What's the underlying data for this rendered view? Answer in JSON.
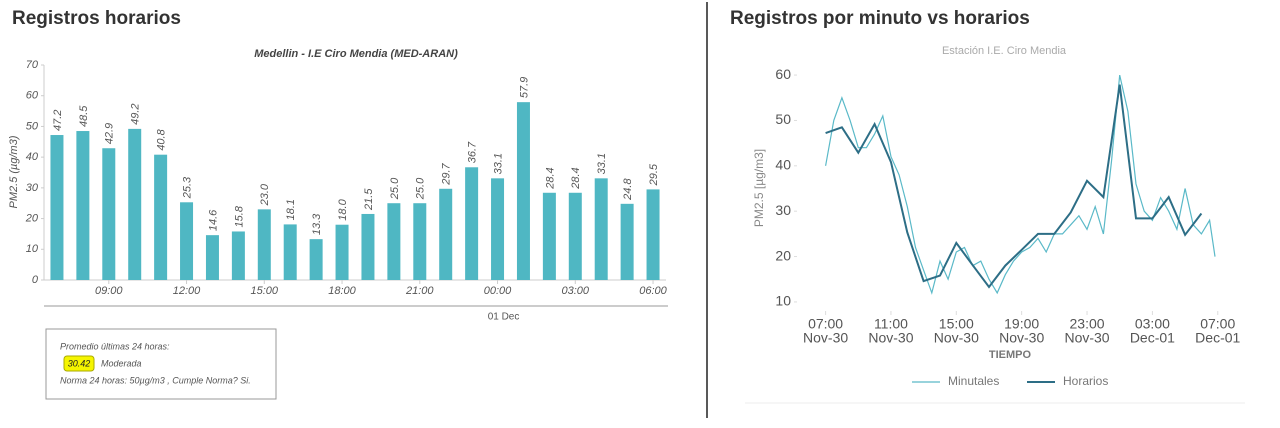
{
  "sections": [
    {
      "heading": "Registros horarios"
    },
    {
      "heading": "Registros por minuto vs horarios"
    }
  ],
  "summary": {
    "label": "Promedio últimas 24 horas:",
    "value": 30.42,
    "category": "Moderada",
    "norm": "Norma 24 horas: 50µg/m3 , Cumple Norma? Si."
  },
  "chart_data": [
    {
      "type": "bar",
      "title": "Medellin - I.E Ciro Mendia (MED-ARAN)",
      "ylabel": "PM2.5 (µg/m3)",
      "categories": [
        null,
        null,
        "09:00",
        null,
        null,
        "12:00",
        null,
        null,
        "15:00",
        null,
        null,
        "18:00",
        null,
        null,
        "21:00",
        null,
        null,
        "00:00",
        null,
        null,
        "03:00",
        null,
        null,
        "06:00"
      ],
      "x_sublabel": "01 Dec",
      "values": [
        47.2,
        48.5,
        42.9,
        49.2,
        40.8,
        25.3,
        14.6,
        15.8,
        23.0,
        18.1,
        13.3,
        18.0,
        21.5,
        25.0,
        25.0,
        29.7,
        36.7,
        33.1,
        57.9,
        28.4,
        28.4,
        33.1,
        24.8,
        29.5
      ],
      "value_labels": [
        "47.2",
        "48.5",
        "42.9",
        "49.2",
        "40.8",
        "25.3",
        "14.6",
        "15.8",
        "23.0",
        "18.1",
        "13.3",
        "18.0",
        "21.5",
        "25.0",
        "25.0",
        "29.7",
        "36.7",
        "33.1",
        "57.9",
        "28.4",
        "28.4",
        "33.1",
        "24.8",
        "29.5"
      ],
      "color": "#4fb7c3",
      "ylim": [
        0,
        70
      ],
      "yticks": [
        0,
        10,
        20,
        30,
        40,
        50,
        60,
        70
      ]
    },
    {
      "type": "line",
      "title": "Estación I.E. Ciro Mendia",
      "ylabel": "PM2.5 [µg/m3]",
      "xlabel": "TIEMPO",
      "xlim": [
        "Nov-30 05:15",
        "Dec-01 07:45"
      ],
      "ylim": [
        8,
        62
      ],
      "yticks": [
        10,
        20,
        30,
        40,
        50,
        60
      ],
      "xticks": [
        {
          "value": "Nov-30 07:00",
          "label": "07:00",
          "sublabel": "Nov-30"
        },
        {
          "value": "Nov-30 11:00",
          "label": "11:00",
          "sublabel": "Nov-30"
        },
        {
          "value": "Nov-30 15:00",
          "label": "15:00",
          "sublabel": "Nov-30"
        },
        {
          "value": "Nov-30 19:00",
          "label": "19:00",
          "sublabel": "Nov-30"
        },
        {
          "value": "Nov-30 23:00",
          "label": "23:00",
          "sublabel": "Nov-30"
        },
        {
          "value": "Dec-01 03:00",
          "label": "03:00",
          "sublabel": "Dec-01"
        },
        {
          "value": "Dec-01 07:00",
          "label": "07:00",
          "sublabel": "Dec-01"
        }
      ],
      "legend": "bottom",
      "series": [
        {
          "name": "Minutales",
          "color": "#5ab9c8",
          "x": [
            "Nov-30 07:00",
            "Nov-30 07:30",
            "Nov-30 08:00",
            "Nov-30 08:30",
            "Nov-30 09:00",
            "Nov-30 09:30",
            "Nov-30 10:00",
            "Nov-30 10:30",
            "Nov-30 11:00",
            "Nov-30 11:30",
            "Nov-30 12:00",
            "Nov-30 12:30",
            "Nov-30 13:00",
            "Nov-30 13:30",
            "Nov-30 14:00",
            "Nov-30 14:30",
            "Nov-30 15:00",
            "Nov-30 15:30",
            "Nov-30 16:00",
            "Nov-30 16:30",
            "Nov-30 17:00",
            "Nov-30 17:30",
            "Nov-30 18:00",
            "Nov-30 18:30",
            "Nov-30 19:00",
            "Nov-30 19:30",
            "Nov-30 20:00",
            "Nov-30 20:30",
            "Nov-30 21:00",
            "Nov-30 21:30",
            "Nov-30 22:00",
            "Nov-30 22:30",
            "Nov-30 23:00",
            "Nov-30 23:30",
            "Dec-01 00:00",
            "Dec-01 00:30",
            "Dec-01 01:00",
            "Dec-01 01:30",
            "Dec-01 02:00",
            "Dec-01 02:30",
            "Dec-01 03:00",
            "Dec-01 03:30",
            "Dec-01 04:00",
            "Dec-01 04:30",
            "Dec-01 05:00",
            "Dec-01 05:30",
            "Dec-01 06:00",
            "Dec-01 06:30",
            "Dec-01 06:50"
          ],
          "values": [
            40,
            50,
            55,
            50,
            44,
            44,
            47,
            51,
            42,
            38,
            31,
            22,
            17,
            12,
            19,
            15,
            21,
            22,
            18,
            19,
            15,
            12,
            16,
            19,
            21,
            22,
            24,
            21,
            25,
            25,
            27,
            29,
            26,
            31,
            25,
            41,
            60,
            52,
            36,
            30,
            28,
            33,
            30,
            26,
            35,
            27,
            25,
            28,
            20
          ]
        },
        {
          "name": "Horarios",
          "color": "#2d6e86",
          "x": [
            "Nov-30 07:00",
            "Nov-30 08:00",
            "Nov-30 09:00",
            "Nov-30 10:00",
            "Nov-30 11:00",
            "Nov-30 12:00",
            "Nov-30 13:00",
            "Nov-30 14:00",
            "Nov-30 15:00",
            "Nov-30 16:00",
            "Nov-30 17:00",
            "Nov-30 18:00",
            "Nov-30 19:00",
            "Nov-30 20:00",
            "Nov-30 21:00",
            "Nov-30 22:00",
            "Nov-30 23:00",
            "Dec-01 00:00",
            "Dec-01 01:00",
            "Dec-01 02:00",
            "Dec-01 03:00",
            "Dec-01 04:00",
            "Dec-01 05:00",
            "Dec-01 06:00"
          ],
          "values": [
            47.2,
            48.5,
            42.9,
            49.2,
            40.8,
            25.3,
            14.6,
            15.8,
            23.0,
            18.1,
            13.3,
            18.0,
            21.5,
            25.0,
            25.0,
            29.7,
            36.7,
            33.1,
            57.9,
            28.4,
            28.4,
            33.1,
            24.8,
            29.5
          ]
        }
      ]
    }
  ]
}
